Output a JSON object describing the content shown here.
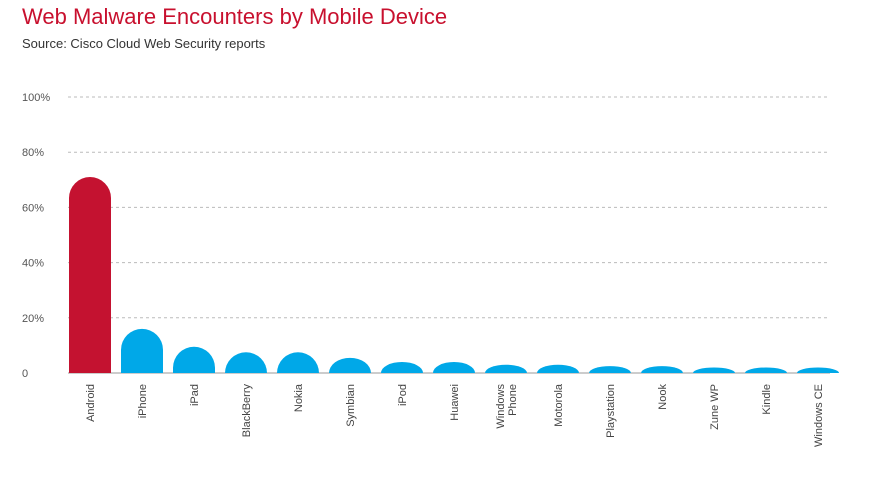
{
  "chart_data": {
    "type": "bar",
    "title": "Web Malware Encounters by Mobile Device",
    "subtitle": "Source: Cisco Cloud Web Security reports",
    "categories": [
      "Android",
      "iPhone",
      "iPad",
      "BlackBerry",
      "Nokia",
      "Symbian",
      "iPod",
      "Huawei",
      "Windows Phone",
      "Motorola",
      "Playstation",
      "Nook",
      "Zune WP",
      "Kindle",
      "Windows CE"
    ],
    "category_lines": [
      [
        "Android"
      ],
      [
        "iPhone"
      ],
      [
        "iPad"
      ],
      [
        "BlackBerry"
      ],
      [
        "Nokia"
      ],
      [
        "Symbian"
      ],
      [
        "iPod"
      ],
      [
        "Huawei"
      ],
      [
        "Windows",
        "Phone"
      ],
      [
        "Motorola"
      ],
      [
        "Playstation"
      ],
      [
        "Nook"
      ],
      [
        "Zune WP"
      ],
      [
        "Kindle"
      ],
      [
        "Windows CE"
      ]
    ],
    "values": [
      71,
      16,
      9.5,
      7.5,
      7.5,
      5.5,
      4,
      4,
      3,
      3,
      2.5,
      2.5,
      2,
      2,
      2
    ],
    "ylim": [
      0,
      100
    ],
    "yticks": [
      0,
      20,
      40,
      60,
      80,
      100
    ],
    "ytick_labels": [
      "0",
      "20%",
      "40%",
      "60%",
      "80%",
      "100%"
    ],
    "grid": true,
    "colors": {
      "highlight": "#c41230",
      "bar": "#00a8e8",
      "grid": "#bbbbbb",
      "title": "#c8102e"
    },
    "highlight_index": 0
  }
}
